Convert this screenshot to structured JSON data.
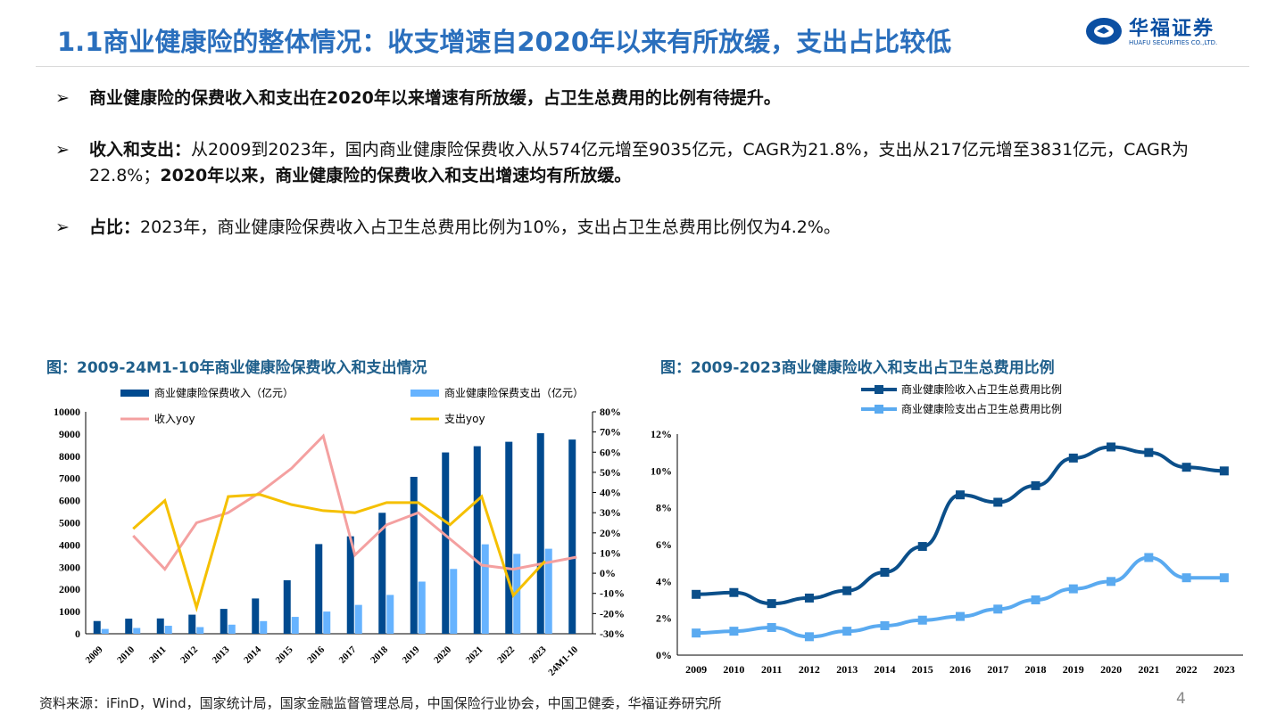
{
  "header": {
    "title": "1.1商业健康险的整体情况：收支增速自2020年以来有所放缓，支出占比较低",
    "logo_text": "华福证券",
    "logo_subtext": "HUAFU SECURITIES CO.,LTD."
  },
  "bullets": [
    {
      "marker": "➢",
      "bold": "商业健康险的保费收入和支出在2020年以来增速有所放缓，占卫生总费用的比例有待提升。",
      "text": "",
      "bold2": ""
    },
    {
      "marker": "➢",
      "bold": "收入和支出：",
      "text": "从2009到2023年，国内商业健康险保费收入从574亿元增至9035亿元，CAGR为21.8%，支出从217亿元增至3831亿元，CAGR为22.8%；",
      "bold2": "2020年以来，商业健康险的保费收入和支出增速均有所放缓。"
    },
    {
      "marker": "➢",
      "bold": "占比：",
      "text": "2023年，商业健康险保费收入占卫生总费用比例为10%，支出占卫生总费用比例仅为4.2%。",
      "bold2": ""
    }
  ],
  "source": "资料来源：iFinD，Wind，国家统计局，国家金融监督管理总局，中国保险行业协会，中国卫健委，华福证券研究所",
  "page_number": "4",
  "colors": {
    "income_bar": "#004a8f",
    "expense_bar": "#66b3ff",
    "income_yoy": "#f4a0a0",
    "expense_yoy": "#f5c000",
    "ratio_income": "#0b4f8a",
    "ratio_expense": "#5aaaf0",
    "title": "#2a6fbd"
  },
  "chart_data": [
    {
      "type": "bar",
      "title": "图：2009-24M1-10年商业健康险保费收入和支出情况",
      "categories": [
        "2009",
        "2010",
        "2011",
        "2012",
        "2013",
        "2014",
        "2015",
        "2016",
        "2017",
        "2018",
        "2019",
        "2020",
        "2021",
        "2022",
        "2023",
        "24M1-10"
      ],
      "ylim": [
        0,
        10000
      ],
      "yticks": [
        "0",
        "1000",
        "2000",
        "3000",
        "4000",
        "5000",
        "6000",
        "7000",
        "8000",
        "9000",
        "10000"
      ],
      "y2lim": [
        -30,
        80
      ],
      "y2ticks": [
        "-30%",
        "-20%",
        "-10%",
        "0%",
        "10%",
        "20%",
        "30%",
        "40%",
        "50%",
        "60%",
        "70%",
        "80%"
      ],
      "legend": "top",
      "grid": false,
      "series": [
        {
          "name": "商业健康险保费收入（亿元）",
          "type": "bar",
          "axis": "left",
          "values": [
            574,
            680,
            690,
            860,
            1120,
            1590,
            2410,
            4040,
            4390,
            5450,
            7070,
            8170,
            8450,
            8650,
            9035,
            8750
          ]
        },
        {
          "name": "商业健康险保费支出（亿元）",
          "type": "bar",
          "axis": "left",
          "values": [
            217,
            260,
            360,
            300,
            410,
            570,
            760,
            1000,
            1300,
            1750,
            2350,
            2920,
            4030,
            3600,
            3831,
            null
          ]
        },
        {
          "name": "收入yoy",
          "type": "line",
          "axis": "right",
          "values": [
            null,
            18.6,
            2,
            25,
            30,
            40,
            52,
            68,
            9,
            24,
            30,
            17,
            4,
            2,
            5,
            8
          ]
        },
        {
          "name": "支出yoy",
          "type": "line",
          "axis": "right",
          "values": [
            null,
            22,
            36,
            -17,
            38,
            39,
            34,
            31,
            30,
            35,
            35,
            24,
            38,
            -11,
            6,
            null
          ]
        }
      ]
    },
    {
      "type": "line",
      "title": "图：2009-2023商业健康险收入和支出占卫生总费用比例",
      "categories": [
        "2009",
        "2010",
        "2011",
        "2012",
        "2013",
        "2014",
        "2015",
        "2016",
        "2017",
        "2018",
        "2019",
        "2020",
        "2021",
        "2022",
        "2023"
      ],
      "ylim": [
        0,
        12
      ],
      "yticks": [
        "0%",
        "2%",
        "4%",
        "6%",
        "8%",
        "10%",
        "12%"
      ],
      "legend": "top",
      "grid": false,
      "series": [
        {
          "name": "商业健康险收入占卫生总费用比例",
          "values": [
            3.3,
            3.4,
            2.8,
            3.1,
            3.5,
            4.5,
            5.9,
            8.7,
            8.3,
            9.2,
            10.7,
            11.3,
            11.0,
            10.2,
            10.0
          ]
        },
        {
          "name": "商业健康险支出占卫生总费用比例",
          "values": [
            1.2,
            1.3,
            1.5,
            1.0,
            1.3,
            1.6,
            1.9,
            2.1,
            2.5,
            3.0,
            3.6,
            4.0,
            5.3,
            4.2,
            4.2
          ]
        }
      ]
    }
  ]
}
